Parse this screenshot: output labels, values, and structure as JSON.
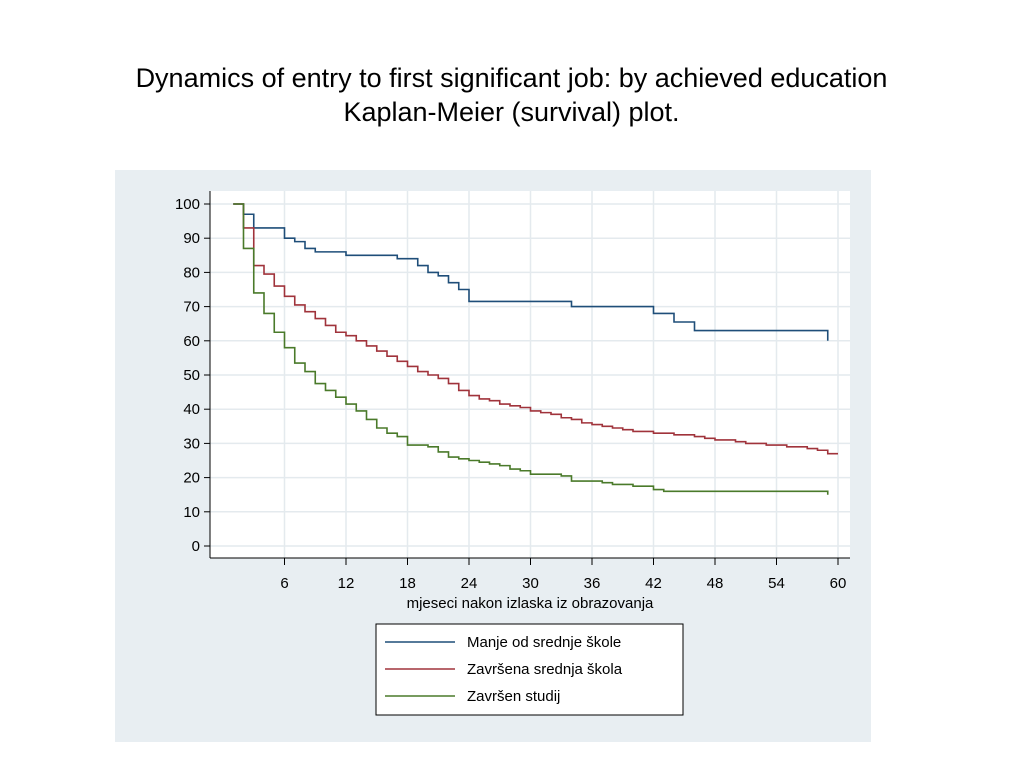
{
  "title": {
    "line1": "Dynamics of entry to first significant job: by achieved education",
    "line2": "Kaplan-Meier  (survival) plot."
  },
  "chart_data": {
    "type": "line",
    "xlabel": "mjeseci nakon izlaska iz obrazovanja",
    "ylabel": "",
    "xlim": [
      0,
      60
    ],
    "ylim": [
      0,
      100
    ],
    "xticks": [
      6,
      12,
      18,
      24,
      30,
      36,
      42,
      48,
      54,
      60
    ],
    "yticks": [
      0,
      10,
      20,
      30,
      40,
      50,
      60,
      70,
      80,
      90,
      100
    ],
    "grid": true,
    "legend_position": "bottom",
    "series": [
      {
        "name": "Manje od srednje škole",
        "color": "#1f4e79",
        "x": [
          1,
          2,
          3,
          6,
          7,
          8,
          9,
          12,
          17,
          19,
          20,
          21,
          22,
          23,
          24,
          34,
          42,
          44,
          46,
          59
        ],
        "y": [
          100,
          97,
          93,
          90,
          89,
          87,
          86,
          85,
          84,
          82,
          80,
          79,
          77,
          75,
          71.5,
          70,
          68,
          65.5,
          63,
          60
        ]
      },
      {
        "name": "Završena srednja škola",
        "color": "#a0333b",
        "x": [
          1,
          2,
          3,
          4,
          5,
          6,
          7,
          8,
          9,
          10,
          11,
          12,
          13,
          14,
          15,
          16,
          17,
          18,
          19,
          20,
          21,
          22,
          23,
          24,
          25,
          26,
          27,
          28,
          29,
          30,
          31,
          32,
          33,
          34,
          35,
          36,
          37,
          38,
          39,
          40,
          41,
          42,
          43,
          44,
          45,
          46,
          47,
          48,
          49,
          50,
          51,
          52,
          53,
          54,
          55,
          56,
          57,
          58,
          59,
          60
        ],
        "y": [
          100,
          93,
          82,
          79.5,
          76,
          73,
          70.5,
          68.5,
          66.5,
          64.5,
          62.5,
          61.5,
          60,
          58.5,
          57,
          55.5,
          54,
          52.5,
          51,
          50,
          49,
          47.5,
          45.5,
          44,
          43,
          42.5,
          41.5,
          41,
          40.5,
          39.5,
          39,
          38.5,
          37.5,
          37,
          36,
          35.5,
          35,
          34.5,
          34,
          33.5,
          33.5,
          33,
          33,
          32.5,
          32.5,
          32,
          31.5,
          31,
          31,
          30.5,
          30,
          30,
          29.5,
          29.5,
          29,
          29,
          28.5,
          28,
          27,
          27
        ]
      },
      {
        "name": "Završen studij",
        "color": "#4a7a2a",
        "x": [
          1,
          2,
          3,
          4,
          5,
          6,
          7,
          8,
          9,
          10,
          11,
          12,
          13,
          14,
          15,
          16,
          17,
          18,
          20,
          21,
          22,
          23,
          24,
          25,
          26,
          27,
          28,
          29,
          30,
          33,
          34,
          37,
          38,
          40,
          42,
          43,
          58,
          59
        ],
        "y": [
          100,
          87,
          74,
          68,
          62.5,
          58,
          53.5,
          51,
          47.5,
          45.5,
          43.5,
          41.5,
          39.5,
          37,
          34.5,
          33,
          32,
          29.5,
          29,
          27.5,
          26,
          25.5,
          25,
          24.5,
          24,
          23.5,
          22.5,
          22,
          21,
          20.5,
          19,
          18.5,
          18,
          17.5,
          16.5,
          16,
          16,
          15
        ]
      }
    ]
  }
}
